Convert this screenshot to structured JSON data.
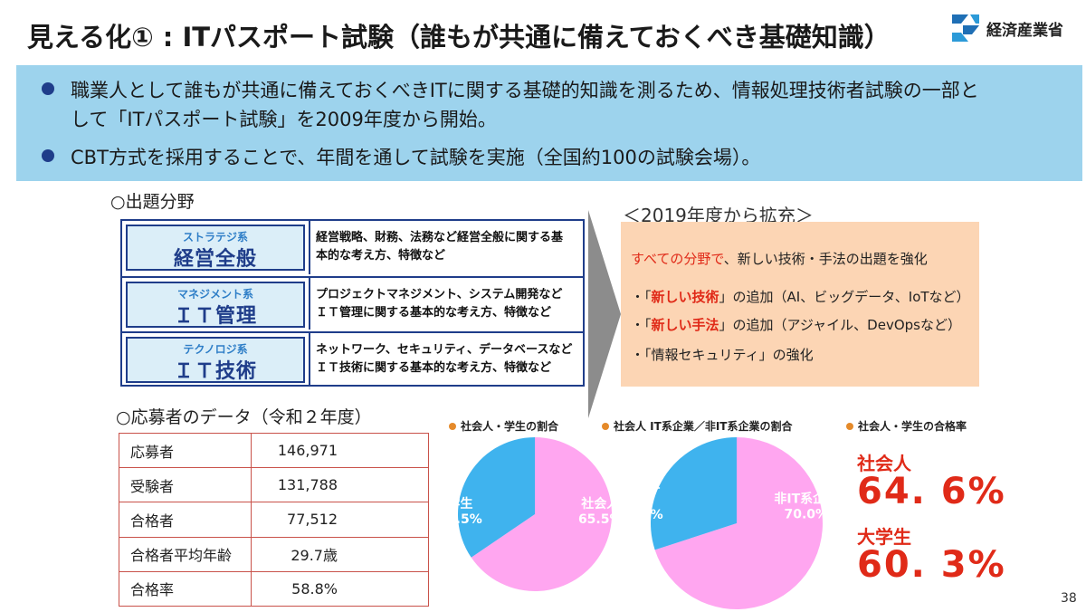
{
  "title": "見える化① : ITパスポート試験（誰もが共通に備えておくべき基礎知識）",
  "logo": {
    "text": "経済産業省"
  },
  "banner": {
    "bullets": [
      {
        "line1": "職業人として誰もが共通に備えておくべきITに関する基礎的知識を測るため、情報処理技術者試験の一部と",
        "line2": "して「ITパスポート試験」を2009年度から開始。"
      },
      {
        "line1": "CBT方式を採用することで、年間を通して試験を実施（全国約100の試験会場）。"
      }
    ]
  },
  "fields": {
    "heading": "○出題分野",
    "rows": [
      {
        "sub": "ストラテジ系",
        "main": "経営全般",
        "desc1": "経営戦略、財務、法務など経営全般に関する基",
        "desc2": "本的な考え方、特徴など"
      },
      {
        "sub": "マネジメント系",
        "main": "ＩＴ管理",
        "desc1": "プロジェクトマネジメント、システム開発など",
        "desc2": "ＩＴ管理に関する基本的な考え方、特徴など"
      },
      {
        "sub": "テクノロジ系",
        "main": "ＩＴ技術",
        "desc1": "ネットワーク、セキュリティ、データベースなど",
        "desc2": "ＩＴ技術に関する基本的な考え方、特徴など"
      }
    ]
  },
  "expansion": {
    "heading": "＜2019年度から拡充＞",
    "first_red": "すべての分野で",
    "first_rest": "、新しい技術・手法の出題を強化",
    "items": [
      {
        "pre": "・「",
        "red": "新しい技術",
        "post": "」の追加（AI、ビッグデータ、IoTなど）"
      },
      {
        "pre": "・「",
        "red": "新しい手法",
        "post": "」の追加（アジャイル、DevOpsなど）"
      },
      {
        "pre": "・「情報セキュリティ」の強化",
        "red": "",
        "post": ""
      }
    ]
  },
  "applicants": {
    "heading": "○応募者のデータ（令和２年度）",
    "rows": [
      {
        "label": "応募者",
        "value": "146,971"
      },
      {
        "label": "受験者",
        "value": "131,788"
      },
      {
        "label": "合格者",
        "value": "77,512"
      },
      {
        "label": "合格者平均年齢",
        "value": "29.7歳"
      },
      {
        "label": "合格率",
        "value": "58.8%"
      }
    ]
  },
  "chart_data": [
    {
      "type": "pie",
      "title": "社会人・学生の割合",
      "categories": [
        "社会人",
        "学生"
      ],
      "values": [
        65.5,
        34.5
      ],
      "labels": [
        "社会人\n65.5%",
        "学生\n34.5%"
      ],
      "colors": [
        "#ffa6f0",
        "#3fb3ee"
      ]
    },
    {
      "type": "pie",
      "title": "社会人 IT系企業／非IT系企業の割合",
      "categories": [
        "非IT系企業",
        "IT系企業"
      ],
      "values": [
        70.0,
        30.0
      ],
      "labels": [
        "非IT系企業\n70.0%",
        "IT系企\n業\n30.0%"
      ],
      "colors": [
        "#ffa6f0",
        "#3fb3ee"
      ]
    }
  ],
  "pass_rate": {
    "title": "社会人・学生の合格率",
    "items": [
      {
        "label": "社会人",
        "value": "64. 6%"
      },
      {
        "label": "大学生",
        "value": "60. 3%"
      }
    ]
  },
  "page_number": "38"
}
